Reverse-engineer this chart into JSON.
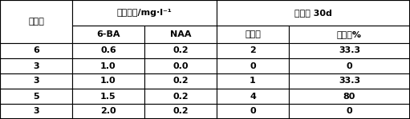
{
  "header_row1": {
    "col0": "接种数",
    "col12_span": "激素浓度/mg·l⁻¹",
    "col34_span": "接种后 30d"
  },
  "header_row2": {
    "col1": "6-BA",
    "col2": "NAA",
    "col3": "发芽数",
    "col4": "诱导率%"
  },
  "rows": [
    [
      "6",
      "0.6",
      "0.2",
      "2",
      "33.3"
    ],
    [
      "3",
      "1.0",
      "0.0",
      "0",
      "0"
    ],
    [
      "3",
      "1.0",
      "0.2",
      "1",
      "33.3"
    ],
    [
      "5",
      "1.5",
      "0.2",
      "4",
      "80"
    ],
    [
      "3",
      "2.0",
      "0.2",
      "0",
      "0"
    ]
  ],
  "background_color": "#ffffff",
  "border_color": "#000000",
  "text_color": "#000000",
  "font_size": 8,
  "header_font_size": 8
}
